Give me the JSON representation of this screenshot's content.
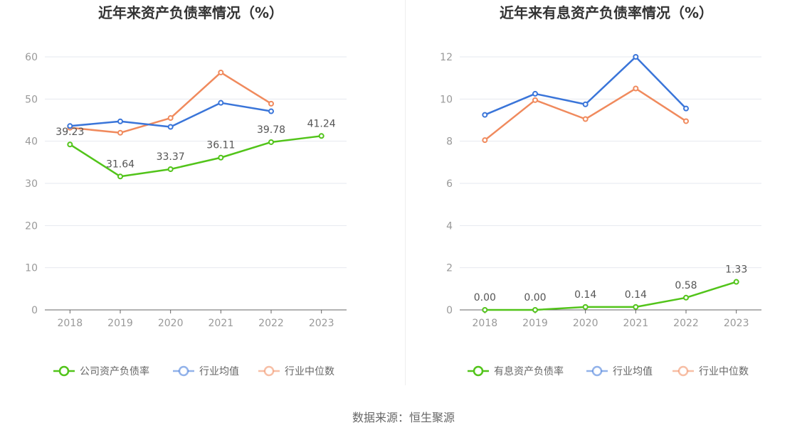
{
  "source": "数据来源：恒生聚源",
  "chart_data": [
    {
      "type": "line",
      "title": "近年来资产负债率情况（%）",
      "categories": [
        "2018",
        "2019",
        "2020",
        "2021",
        "2022",
        "2023"
      ],
      "ylim": [
        0,
        60
      ],
      "yticks": [
        0,
        10,
        20,
        30,
        40,
        50,
        60
      ],
      "grid": true,
      "legend_position": "bottom",
      "series": [
        {
          "name": "公司资产负债率",
          "color": "#52c41a",
          "values": [
            39.23,
            31.64,
            33.37,
            36.11,
            39.78,
            41.24
          ],
          "labels": [
            "39.23",
            "31.64",
            "33.37",
            "36.11",
            "39.78",
            "41.24"
          ]
        },
        {
          "name": "行业均值",
          "color": "#3a75d9",
          "values": [
            43.6,
            44.7,
            43.4,
            49.1,
            47.1,
            null
          ]
        },
        {
          "name": "行业中位数",
          "color": "#f08a5d",
          "values": [
            43.2,
            42.0,
            45.5,
            56.3,
            48.9,
            null
          ]
        }
      ]
    },
    {
      "type": "line",
      "title": "近年来有息资产负债率情况（%）",
      "categories": [
        "2018",
        "2019",
        "2020",
        "2021",
        "2022",
        "2023"
      ],
      "ylim": [
        0,
        12
      ],
      "yticks": [
        0,
        2,
        4,
        6,
        8,
        10,
        12
      ],
      "grid": true,
      "legend_position": "bottom",
      "series": [
        {
          "name": "有息资产负债率",
          "color": "#52c41a",
          "values": [
            0.0,
            0.0,
            0.14,
            0.14,
            0.58,
            1.33
          ],
          "labels": [
            "0.00",
            "0.00",
            "0.14",
            "0.14",
            "0.58",
            "1.33"
          ]
        },
        {
          "name": "行业均值",
          "color": "#3a75d9",
          "values": [
            9.25,
            10.25,
            9.75,
            12.0,
            9.55,
            null
          ]
        },
        {
          "name": "行业中位数",
          "color": "#f08a5d",
          "values": [
            8.05,
            9.95,
            9.05,
            10.5,
            8.95,
            null
          ]
        }
      ]
    }
  ]
}
